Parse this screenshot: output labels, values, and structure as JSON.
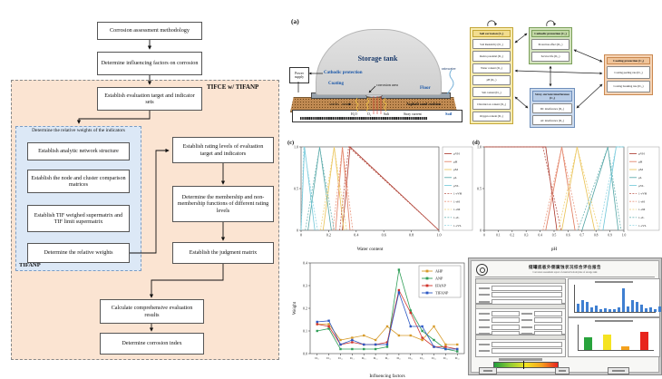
{
  "flowchart": {
    "top": [
      "Corrosion assessment methodology",
      "Determine influencing factors on corrosion"
    ],
    "outer_label": "TIFCE w/ TIFANP",
    "target": "Establish evaluation target and indicator sets",
    "weights_group_title": "Determine the relative weights of the indicators",
    "weights_group_label": "TIFANP",
    "weights_steps": [
      "Establish analytic network structure",
      "Establish the node and cluster comparison matrices",
      "Establish TIF weighed supermatrix and TIF limit supermatrix",
      "Determine the relative weights"
    ],
    "right_steps": [
      "Establish rating levels of evaluation target and indicators",
      "Determine the membership and non-membership functions of different rating levels",
      "Establish the judgment matrix"
    ],
    "bottom_steps": [
      "Calculate comprehensive evaluation results",
      "Determine corrosion index"
    ]
  },
  "tank": {
    "panel_label": "(a)",
    "tank": "Storage tank",
    "power_supply": "Power supply",
    "cathodic": "Cathodic protection",
    "coating": "Coating",
    "corrosion_area": "corrosion area",
    "floor": "Floor",
    "rainwater": "rainwater",
    "cracks": "cracks",
    "cushion": "Asphalt sand cushion",
    "soil": "Soil",
    "species": [
      "H₂O",
      "O₂",
      "Salt",
      "Stray current"
    ]
  },
  "network": {
    "clusters": [
      {
        "name": "Soil corrosion (C₁)",
        "fill": "#f8ecb0",
        "edge": "#c3a637",
        "header": "#f2dd8e",
        "items": [
          "Soil Resistivity (D₁₁)",
          "Redox potential (D₁₂)",
          "Water content (D₁₃)",
          "pH (D₁₄)",
          "Salt content (D₁₅)",
          "Chloride ion content (D₁₆)",
          "Oxygen content (D₁₇)"
        ]
      },
      {
        "name": "Cathodic protection (C₂)",
        "fill": "#d3e3bd",
        "edge": "#7ba05a",
        "header": "#c2d8a4",
        "items": [
          "Protection effect (D₂₁)",
          "Service life (D₂₂)"
        ]
      },
      {
        "name": "Stray current interference (C₃)",
        "fill": "#ccdbee",
        "edge": "#6f8fbb",
        "header": "#b9cde7",
        "items": [
          "DC interference (D₃₁)",
          "AC interference (D₃₂)"
        ]
      },
      {
        "name": "Coating protection (C₄)",
        "fill": "#f6d4b5",
        "edge": "#c98850",
        "header": "#f0c49a",
        "items": [
          "Coating peeling rate (D₄₁)",
          "Coating breaking rate (D₄₂)"
        ]
      }
    ]
  },
  "chart_data": [
    {
      "id": "water_membership",
      "type": "line",
      "panel_label": "(c)",
      "xlabel": "Water content",
      "ylabel": "",
      "xlim": [
        0,
        1
      ],
      "ylim": [
        0,
        1
      ],
      "xticks": [
        0,
        0.2,
        0.4,
        0.6,
        0.8,
        1.0
      ],
      "xtick_labels": [
        "0",
        "0.2",
        "0.4",
        "0.6",
        "0.8",
        "1.0"
      ],
      "yticks": [
        0,
        0.5,
        1.0
      ],
      "ytick_labels": [
        "0",
        "0.5",
        "1.0"
      ],
      "legend": "right",
      "grid": false,
      "series": [
        {
          "name": "μVH",
          "color": "#a93226",
          "dash": false,
          "points": [
            [
              0.3,
              0
            ],
            [
              0.355,
              1
            ],
            [
              1.0,
              0
            ]
          ]
        },
        {
          "name": "μH",
          "color": "#e0795c",
          "dash": false,
          "points": [
            [
              0.25,
              0
            ],
            [
              0.3,
              1
            ],
            [
              0.355,
              0
            ]
          ]
        },
        {
          "name": "μM",
          "color": "#e9c152",
          "dash": false,
          "points": [
            [
              0.16,
              0
            ],
            [
              0.24,
              1
            ],
            [
              0.31,
              0
            ]
          ]
        },
        {
          "name": "μL",
          "color": "#4fa3a3",
          "dash": false,
          "points": [
            [
              0.05,
              0
            ],
            [
              0.135,
              1
            ],
            [
              0.22,
              0
            ]
          ]
        },
        {
          "name": "μVL",
          "color": "#6ec6d8",
          "dash": false,
          "points": [
            [
              0.0,
              0
            ],
            [
              0.025,
              1
            ],
            [
              0.1,
              0
            ]
          ]
        },
        {
          "name": "1-νVH",
          "color": "#bb5a4e",
          "dash": true,
          "points": [
            [
              0.28,
              0
            ],
            [
              0.345,
              1
            ],
            [
              1.0,
              0
            ]
          ]
        },
        {
          "name": "1-νH",
          "color": "#ea9a82",
          "dash": true,
          "points": [
            [
              0.23,
              0
            ],
            [
              0.3,
              1
            ],
            [
              0.375,
              0
            ]
          ]
        },
        {
          "name": "1-νM",
          "color": "#f0d178",
          "dash": true,
          "points": [
            [
              0.14,
              0
            ],
            [
              0.24,
              1
            ],
            [
              0.33,
              0
            ]
          ]
        },
        {
          "name": "1-νL",
          "color": "#74b8b8",
          "dash": true,
          "points": [
            [
              0.03,
              0
            ],
            [
              0.135,
              1
            ],
            [
              0.24,
              0
            ]
          ]
        },
        {
          "name": "1-νVL",
          "color": "#93d6e4",
          "dash": true,
          "points": [
            [
              0.0,
              0
            ],
            [
              0.02,
              1
            ],
            [
              0.12,
              0
            ]
          ]
        }
      ]
    },
    {
      "id": "ph_membership",
      "type": "line",
      "panel_label": "(d)",
      "xlabel": "pH",
      "ylabel": "",
      "xlim": [
        0,
        1
      ],
      "ylim": [
        0,
        1
      ],
      "xticks": [
        0,
        0.1,
        0.2,
        0.3,
        0.4,
        0.5,
        0.6,
        0.7,
        0.8,
        0.9,
        1.0
      ],
      "xtick_labels": [
        "0",
        "0.1",
        "0.2",
        "0.3",
        "0.4",
        "0.5",
        "0.6",
        "0.7",
        "0.8",
        "0.9",
        "1.0"
      ],
      "yticks": [
        0,
        0.5,
        1.0
      ],
      "ytick_labels": [
        "0",
        "0.5",
        "1.0"
      ],
      "legend": "right",
      "grid": false,
      "series": [
        {
          "name": "μVH",
          "color": "#a93226",
          "dash": false,
          "points": [
            [
              0,
              1
            ],
            [
              0.44,
              1
            ],
            [
              0.52,
              0
            ]
          ]
        },
        {
          "name": "μH",
          "color": "#e0795c",
          "dash": false,
          "points": [
            [
              0.44,
              0
            ],
            [
              0.555,
              1
            ],
            [
              0.65,
              0
            ]
          ]
        },
        {
          "name": "μM",
          "color": "#e9c152",
          "dash": false,
          "points": [
            [
              0.555,
              0
            ],
            [
              0.665,
              1
            ],
            [
              0.79,
              0
            ]
          ]
        },
        {
          "name": "μL",
          "color": "#4fa3a3",
          "dash": false,
          "points": [
            [
              0.7,
              0
            ],
            [
              0.885,
              1
            ],
            [
              0.96,
              0
            ]
          ]
        },
        {
          "name": "μVL",
          "color": "#6ec6d8",
          "dash": false,
          "points": [
            [
              0.85,
              0
            ],
            [
              0.945,
              1
            ],
            [
              1.0,
              1
            ]
          ]
        },
        {
          "name": "1-νVH",
          "color": "#bb5a4e",
          "dash": true,
          "points": [
            [
              0,
              1
            ],
            [
              0.42,
              1
            ],
            [
              0.55,
              0
            ]
          ]
        },
        {
          "name": "1-νH",
          "color": "#ea9a82",
          "dash": true,
          "points": [
            [
              0.42,
              0
            ],
            [
              0.555,
              1
            ],
            [
              0.68,
              0
            ]
          ]
        },
        {
          "name": "1-νM",
          "color": "#f0d178",
          "dash": true,
          "points": [
            [
              0.53,
              0
            ],
            [
              0.665,
              1
            ],
            [
              0.82,
              0
            ]
          ]
        },
        {
          "name": "1-νL",
          "color": "#74b8b8",
          "dash": true,
          "points": [
            [
              0.67,
              0
            ],
            [
              0.885,
              1
            ],
            [
              0.98,
              0
            ]
          ]
        },
        {
          "name": "1-νVL",
          "color": "#93d6e4",
          "dash": true,
          "points": [
            [
              0.82,
              0
            ],
            [
              0.945,
              1
            ],
            [
              1.0,
              1
            ]
          ]
        }
      ]
    },
    {
      "id": "weights_comparison",
      "type": "line",
      "panel_label": "",
      "xlabel": "Influencing factors",
      "ylabel": "Weight",
      "categories": [
        "D₁₁",
        "D₁₂",
        "D₁₃",
        "D₁₄",
        "D₁₅",
        "D₁₆",
        "D₁₇",
        "D₂₁",
        "D₂₂",
        "D₃₁",
        "D₃₂",
        "D₄₁",
        "D₄₂"
      ],
      "ylim": [
        0,
        0.4
      ],
      "yticks": [
        0,
        0.1,
        0.2,
        0.3,
        0.4
      ],
      "ytick_labels": [
        "0.0",
        "0.1",
        "0.2",
        "0.3",
        "0.4"
      ],
      "legend": "inner-tr",
      "grid": false,
      "series": [
        {
          "name": "AHP",
          "color": "#d79b2a",
          "marker": true,
          "values": [
            0.13,
            0.13,
            0.06,
            0.07,
            0.08,
            0.06,
            0.12,
            0.08,
            0.08,
            0.06,
            0.12,
            0.04,
            0.04
          ]
        },
        {
          "name": "ANP",
          "color": "#2f9e57",
          "marker": true,
          "values": [
            0.1,
            0.11,
            0.02,
            0.02,
            0.02,
            0.02,
            0.03,
            0.37,
            0.19,
            0.1,
            0.06,
            0.02,
            0.01
          ]
        },
        {
          "name": "IFANP",
          "color": "#d0342c",
          "marker": true,
          "values": [
            0.13,
            0.12,
            0.04,
            0.05,
            0.04,
            0.04,
            0.05,
            0.28,
            0.18,
            0.07,
            0.03,
            0.03,
            0.02
          ]
        },
        {
          "name": "TIFANP",
          "color": "#2b57c4",
          "marker": true,
          "values": [
            0.14,
            0.145,
            0.04,
            0.06,
            0.04,
            0.04,
            0.04,
            0.27,
            0.12,
            0.12,
            0.03,
            0.02,
            0.02
          ]
        }
      ]
    }
  ],
  "report": {
    "title": "储罐底板外侧腐蚀状况综合评估报告",
    "subtitle": "Corrosion assessment report of external bottom plate of storage tank",
    "top_chart": {
      "type": "bar",
      "color": "#3f7fd1",
      "values": [
        0.35,
        0.5,
        0.42,
        0.2,
        0.28,
        0.12,
        0.15,
        0.1,
        0.12,
        0.18,
        1.0,
        0.25,
        0.5,
        0.42,
        0.32,
        0.15,
        0.2,
        0.12,
        0.22,
        0.1
      ]
    },
    "bottom_chart": {
      "type": "bar",
      "values": [
        0.5,
        0.62,
        0.16,
        0.7
      ],
      "colors": [
        "#28a33c",
        "#f5e322",
        "#f5a21d",
        "#e8241c"
      ]
    },
    "gradient_colors": [
      "#1f9e3c",
      "#8fcc33",
      "#f3e423",
      "#f59f1e",
      "#e7231f"
    ],
    "gradient_marker": 0.45
  }
}
